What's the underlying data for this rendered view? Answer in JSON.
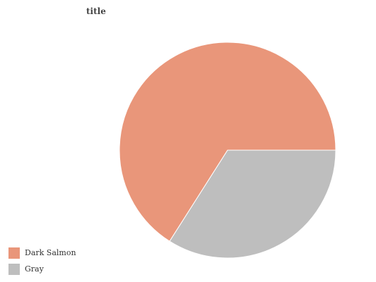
{
  "chart_data": {
    "type": "pie",
    "title": "title",
    "categories": [
      "Dark Salmon",
      "Gray"
    ],
    "values": [
      66,
      34
    ],
    "colors": [
      "#e9967a",
      "#bebebe"
    ],
    "legend_position": "bottom-left"
  },
  "legend": {
    "items": [
      {
        "label": "Dark Salmon",
        "color": "#e9967a"
      },
      {
        "label": "Gray",
        "color": "#bebebe"
      }
    ]
  }
}
